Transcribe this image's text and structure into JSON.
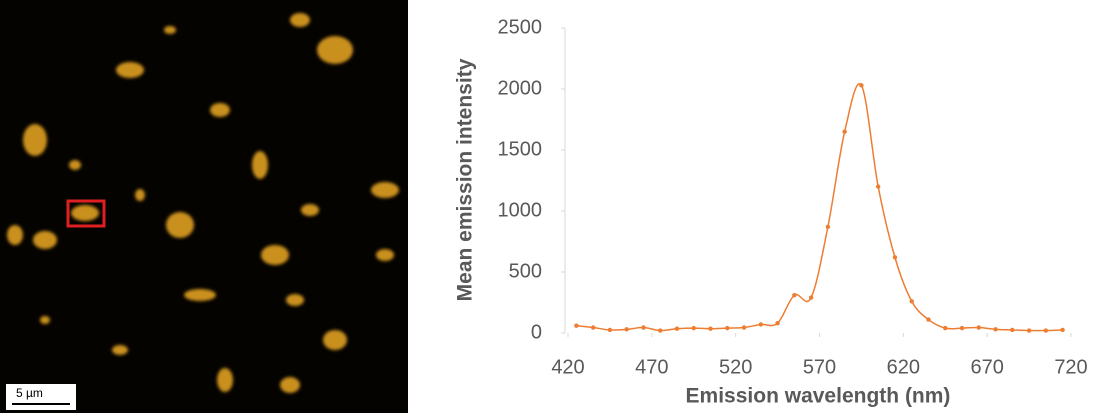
{
  "scale_bar": "5 µm",
  "chart_data": {
    "type": "line",
    "x_label": "Emission wavelength (nm)",
    "y_label": "Mean emission intensity",
    "x": [
      425,
      435,
      445,
      455,
      465,
      475,
      485,
      495,
      505,
      515,
      525,
      535,
      545,
      555,
      565,
      575,
      585,
      595,
      605,
      615,
      625,
      635,
      645,
      655,
      665,
      675,
      685,
      695,
      705,
      715
    ],
    "series": [
      {
        "color": "#ed7d31",
        "values": [
          60,
          45,
          25,
          30,
          45,
          20,
          35,
          40,
          35,
          40,
          45,
          70,
          80,
          310,
          290,
          870,
          1650,
          2030,
          1200,
          620,
          260,
          110,
          40,
          40,
          45,
          30,
          25,
          20,
          20,
          25
        ]
      }
    ],
    "xlim": [
      420,
      720
    ],
    "xticks": [
      420,
      470,
      520,
      570,
      620,
      670,
      720
    ],
    "ylim": [
      0,
      2500
    ],
    "yticks": [
      0,
      500,
      1000,
      1500,
      2000,
      2500
    ]
  }
}
